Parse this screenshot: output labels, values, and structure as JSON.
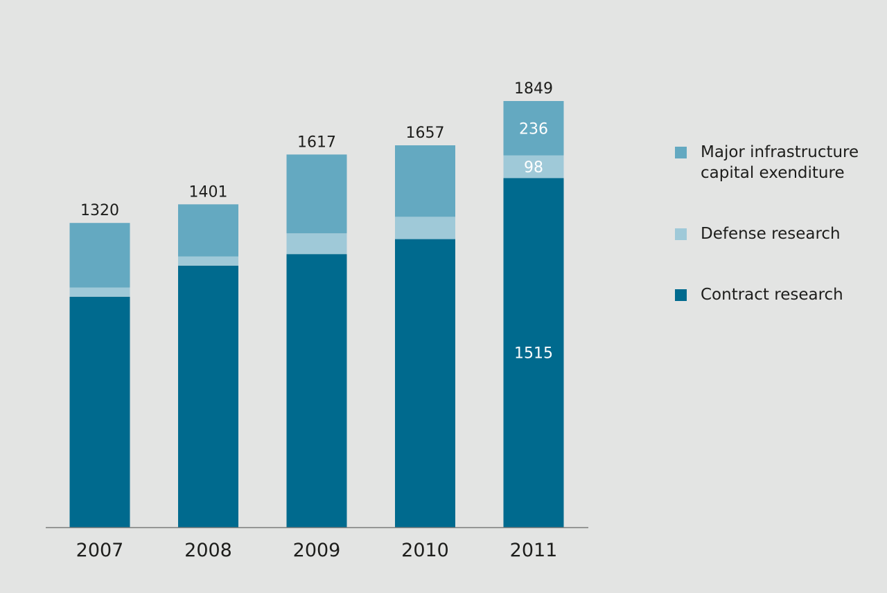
{
  "chart_data": {
    "type": "bar",
    "stacked": true,
    "categories": [
      "2007",
      "2008",
      "2009",
      "2010",
      "2011"
    ],
    "totals": [
      1320,
      1401,
      1617,
      1657,
      1849
    ],
    "series": [
      {
        "key": "contract",
        "name": "Contract research",
        "color": "#006a8e",
        "values": [
          1000,
          1135,
          1185,
          1250,
          1515
        ]
      },
      {
        "key": "defense",
        "name": "Defense research",
        "color": "#9fc9d8",
        "values": [
          40,
          40,
          90,
          97,
          98
        ]
      },
      {
        "key": "infrastructure",
        "name": "Major infrastructure capital exenditure",
        "name_lines": [
          "Major infrastructure",
          "capital exenditure"
        ],
        "color": "#64a9c1",
        "values": [
          280,
          226,
          342,
          310,
          236
        ]
      }
    ],
    "segment_labels": [
      {
        "category": "2011",
        "series": "infrastructure",
        "text": "236"
      },
      {
        "category": "2011",
        "series": "defense",
        "text": "98"
      },
      {
        "category": "2011",
        "series": "contract",
        "text": "1515"
      }
    ],
    "ylim": [
      0,
      1849
    ],
    "grid": false,
    "legend_position": "right",
    "title": "",
    "xlabel": "",
    "ylabel": ""
  },
  "legend": {
    "items": [
      {
        "key": "infrastructure",
        "lines": [
          "Major infrastructure",
          "capital exenditure"
        ],
        "color": "#64a9c1"
      },
      {
        "key": "defense",
        "lines": [
          "Defense research"
        ],
        "color": "#9fc9d8"
      },
      {
        "key": "contract",
        "lines": [
          "Contract research"
        ],
        "color": "#006a8e"
      }
    ]
  }
}
